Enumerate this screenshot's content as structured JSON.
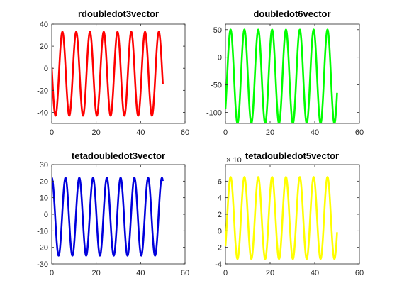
{
  "chart_data": [
    {
      "type": "line",
      "title": "rdoubledot3vector",
      "xlim": [
        0,
        60
      ],
      "ylim": [
        -50,
        40
      ],
      "xticks": [
        0,
        20,
        40,
        60
      ],
      "yticks": [
        -40,
        -20,
        0,
        20,
        40
      ],
      "xtick_labels": [
        "0",
        "20",
        "40",
        "60"
      ],
      "ytick_labels": [
        "-40",
        "-20",
        "0",
        "20",
        "40"
      ],
      "exponent_label": "",
      "grid": false,
      "series": [
        {
          "color": "#ff0000",
          "waveform": "sinusoid",
          "x_range": [
            0,
            50
          ],
          "first_peak_x": 4.8,
          "period": 6.2,
          "min": -43,
          "max": 33,
          "start_y": -25,
          "end_y": -22
        }
      ]
    },
    {
      "type": "line",
      "title": "doubledot6vector",
      "xlim": [
        0,
        60
      ],
      "ylim": [
        -120,
        60
      ],
      "xticks": [
        0,
        20,
        40,
        60
      ],
      "yticks": [
        -100,
        -50,
        0,
        50
      ],
      "xtick_labels": [
        "0",
        "20",
        "40",
        "60"
      ],
      "ytick_labels": [
        "-100",
        "-50",
        "0",
        "50"
      ],
      "exponent_label": "",
      "grid": false,
      "series": [
        {
          "color": "#00ff00",
          "waveform": "sinusoid",
          "x_range": [
            0,
            50
          ],
          "first_peak_x": 2.3,
          "period": 6.2,
          "min": -120,
          "max": 50,
          "start_y": -115,
          "end_y": -105
        }
      ]
    },
    {
      "type": "line",
      "title": "tetadoubledot3vector",
      "xlim": [
        0,
        60
      ],
      "ylim": [
        -30,
        30
      ],
      "xticks": [
        0,
        20,
        40,
        60
      ],
      "yticks": [
        -30,
        -20,
        -10,
        0,
        10,
        20,
        30
      ],
      "xtick_labels": [
        "0",
        "20",
        "40",
        "60"
      ],
      "ytick_labels": [
        "-30",
        "-20",
        "-10",
        "0",
        "10",
        "20",
        "30"
      ],
      "exponent_label": "",
      "grid": false,
      "series": [
        {
          "color": "#0000dd",
          "waveform": "sinusoid",
          "x_range": [
            0,
            50
          ],
          "first_peak_x": 0,
          "period": 6.2,
          "min": -25,
          "max": 22,
          "start_y": 22,
          "end_y": 22
        }
      ]
    },
    {
      "type": "line",
      "title": "tetadoubledot5vector",
      "xlim": [
        0,
        60
      ],
      "ylim": [
        -4,
        8
      ],
      "xticks": [
        0,
        20,
        40,
        60
      ],
      "yticks": [
        -4,
        -2,
        0,
        2,
        4,
        6
      ],
      "xtick_labels": [
        "0",
        "20",
        "40",
        "60"
      ],
      "ytick_labels": [
        "-4",
        "-2",
        "0",
        "2",
        "4",
        "6"
      ],
      "exponent_label": "× 10",
      "grid": false,
      "series": [
        {
          "color": "#ffff00",
          "waveform": "sinusoid",
          "x_range": [
            0,
            50
          ],
          "first_peak_x": 2.3,
          "period": 6.2,
          "min": -3.4,
          "max": 6.5,
          "start_y": -3,
          "end_y": -3.4
        }
      ]
    }
  ]
}
